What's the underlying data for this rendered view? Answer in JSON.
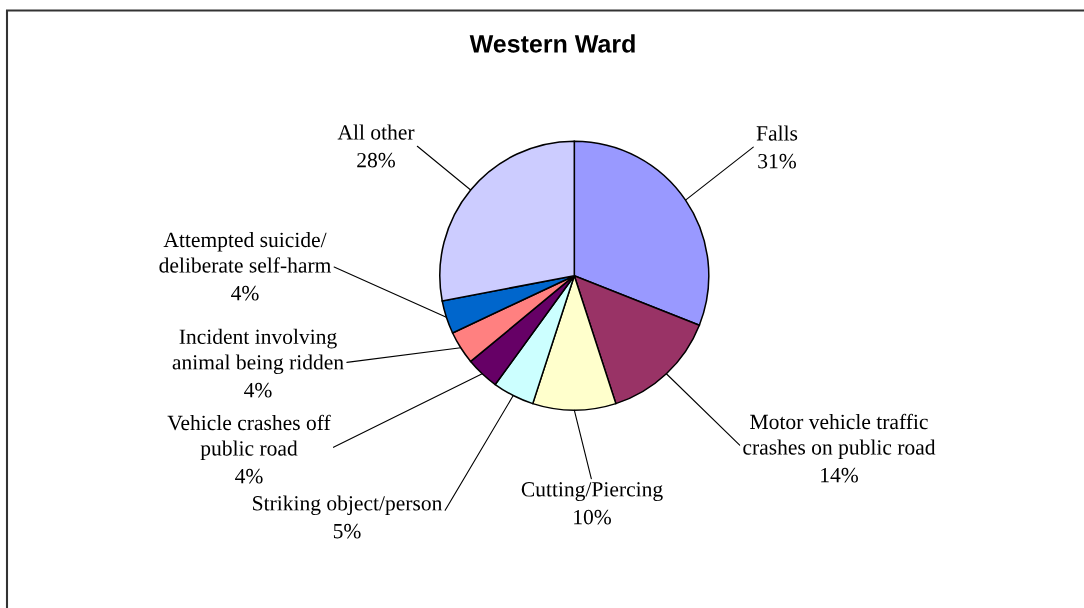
{
  "chart_data": {
    "type": "pie",
    "title": "Western Ward",
    "categories": [
      "Falls",
      "Motor vehicle traffic\ncrashes on public road",
      "Cutting/Piercing",
      "Striking object/person",
      "Vehicle crashes off\npublic road",
      "Incident involving\nanimal being ridden",
      "Attempted suicide/\ndeliberate self-harm",
      "All other"
    ],
    "values": [
      31,
      14,
      10,
      5,
      4,
      4,
      4,
      28
    ],
    "value_labels": [
      "31%",
      "14%",
      "10%",
      "5%",
      "4%",
      "4%",
      "4%",
      "28%"
    ],
    "colors": [
      "#9999ff",
      "#993366",
      "#ffffcc",
      "#ccffff",
      "#660066",
      "#ff8080",
      "#0066cc",
      "#ccccff"
    ]
  }
}
